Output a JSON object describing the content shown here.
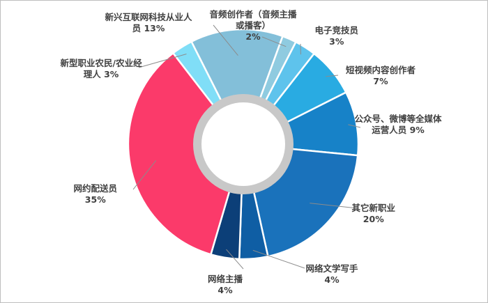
{
  "chart_data": {
    "type": "pie",
    "title": "",
    "unit": "%",
    "series": [
      {
        "id": "podcast",
        "lines": [
          "音频创作者（音频主播",
          "或播客）",
          "2%"
        ],
        "value": 2,
        "color": "#8fcbe0"
      },
      {
        "id": "esports",
        "lines": [
          "电子竞技员",
          "3%"
        ],
        "value": 3,
        "color": "#5ec3ec"
      },
      {
        "id": "shortvideo",
        "lines": [
          "短视频内容创作者",
          "7%"
        ],
        "value": 7,
        "color": "#29abe2"
      },
      {
        "id": "media",
        "lines": [
          "公众号、微博等全媒体",
          "运营人员 9%"
        ],
        "value": 9,
        "color": "#1782c8"
      },
      {
        "id": "other",
        "lines": [
          "其它新职业",
          "20%"
        ],
        "value": 20,
        "color": "#1a72bb"
      },
      {
        "id": "writer",
        "lines": [
          "网络文学写手",
          "4%"
        ],
        "value": 4,
        "color": "#0f5ea4"
      },
      {
        "id": "anchor",
        "lines": [
          "网络主播",
          "4%"
        ],
        "value": 4,
        "color": "#0c3f78"
      },
      {
        "id": "delivery",
        "lines": [
          "网约配送员",
          "35%"
        ],
        "value": 35,
        "color": "#fb3a6a"
      },
      {
        "id": "farmer",
        "lines": [
          "新型职业农民/农业经",
          "理人  3%"
        ],
        "value": 3,
        "color": "#80def7"
      },
      {
        "id": "internet",
        "lines": [
          "新兴互联网科技从业人",
          "员 13%"
        ],
        "value": 13,
        "color": "#83bfd9"
      }
    ]
  }
}
